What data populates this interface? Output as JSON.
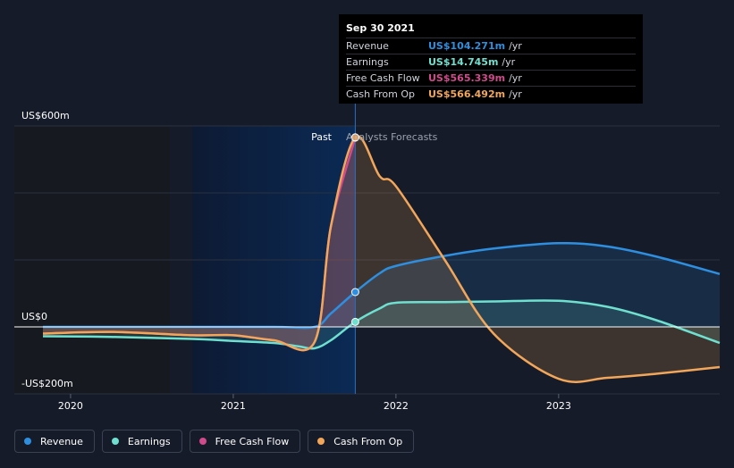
{
  "tooltip": {
    "date": "Sep 30 2021",
    "rows": [
      {
        "name": "Revenue",
        "value": "US$104.271m",
        "unit": "/yr",
        "color": "#2e8fe0"
      },
      {
        "name": "Earnings",
        "value": "US$14.745m",
        "unit": "/yr",
        "color": "#6fe0cf"
      },
      {
        "name": "Free Cash Flow",
        "value": "US$565.339m",
        "unit": "/yr",
        "color": "#d14a8c"
      },
      {
        "name": "Cash From Op",
        "value": "US$566.492m",
        "unit": "/yr",
        "color": "#f2a65a"
      }
    ]
  },
  "legend": [
    {
      "label": "Revenue",
      "color": "#2e8fe0"
    },
    {
      "label": "Earnings",
      "color": "#6fe0cf"
    },
    {
      "label": "Free Cash Flow",
      "color": "#d14a8c"
    },
    {
      "label": "Cash From Op",
      "color": "#f2a65a"
    }
  ],
  "chart_data": {
    "type": "area",
    "xlabel": "",
    "ylabel": "",
    "y_tick_labels": [
      "US$600m",
      "US$0",
      "-US$200m"
    ],
    "x_tick_labels": [
      "2020",
      "2021",
      "2022",
      "2023"
    ],
    "past_label": "Past",
    "forecast_label": "Analysts Forecasts",
    "ylim": [
      -200,
      600
    ],
    "xlim": [
      2019.83,
      2023.99
    ],
    "divider_x": 2021.75,
    "highlight_start_x": 2020.75,
    "grid": true,
    "legend_position": "bottom-left",
    "series": [
      {
        "name": "Revenue",
        "color": "#2e8fe0",
        "x": [
          2019.83,
          2020.25,
          2020.75,
          2021.25,
          2021.5,
          2021.6,
          2021.75,
          2021.9,
          2022.0,
          2022.3,
          2022.6,
          2023.0,
          2023.3,
          2023.6,
          2023.99
        ],
        "y": [
          0,
          0,
          0,
          0,
          0,
          40,
          104,
          160,
          182,
          212,
          234,
          250,
          240,
          210,
          158
        ]
      },
      {
        "name": "Earnings",
        "color": "#6fe0cf",
        "x": [
          2019.83,
          2020.25,
          2020.75,
          2021.0,
          2021.25,
          2021.4,
          2021.5,
          2021.6,
          2021.75,
          2021.9,
          2022.0,
          2022.3,
          2022.6,
          2023.0,
          2023.3,
          2023.6,
          2023.99
        ],
        "y": [
          -28,
          -30,
          -36,
          -42,
          -48,
          -58,
          -64,
          -40,
          15,
          55,
          72,
          74,
          76,
          78,
          60,
          20,
          -48
        ]
      },
      {
        "name": "Free Cash Flow",
        "color": "#d14a8c",
        "x": [
          2019.83,
          2020.25,
          2020.75,
          2021.0,
          2021.25,
          2021.5,
          2021.6,
          2021.75
        ],
        "y": [
          -20,
          -15,
          -25,
          -25,
          -40,
          -45,
          300,
          565
        ]
      },
      {
        "name": "Cash From Op",
        "color": "#f2a65a",
        "x": [
          2019.83,
          2020.25,
          2020.75,
          2021.0,
          2021.25,
          2021.5,
          2021.6,
          2021.75,
          2021.9,
          2022.0,
          2022.3,
          2022.6,
          2023.0,
          2023.3,
          2023.6,
          2023.99
        ],
        "y": [
          -20,
          -15,
          -25,
          -25,
          -40,
          -45,
          300,
          566,
          450,
          420,
          200,
          -20,
          -155,
          -152,
          -140,
          -120
        ]
      }
    ]
  }
}
